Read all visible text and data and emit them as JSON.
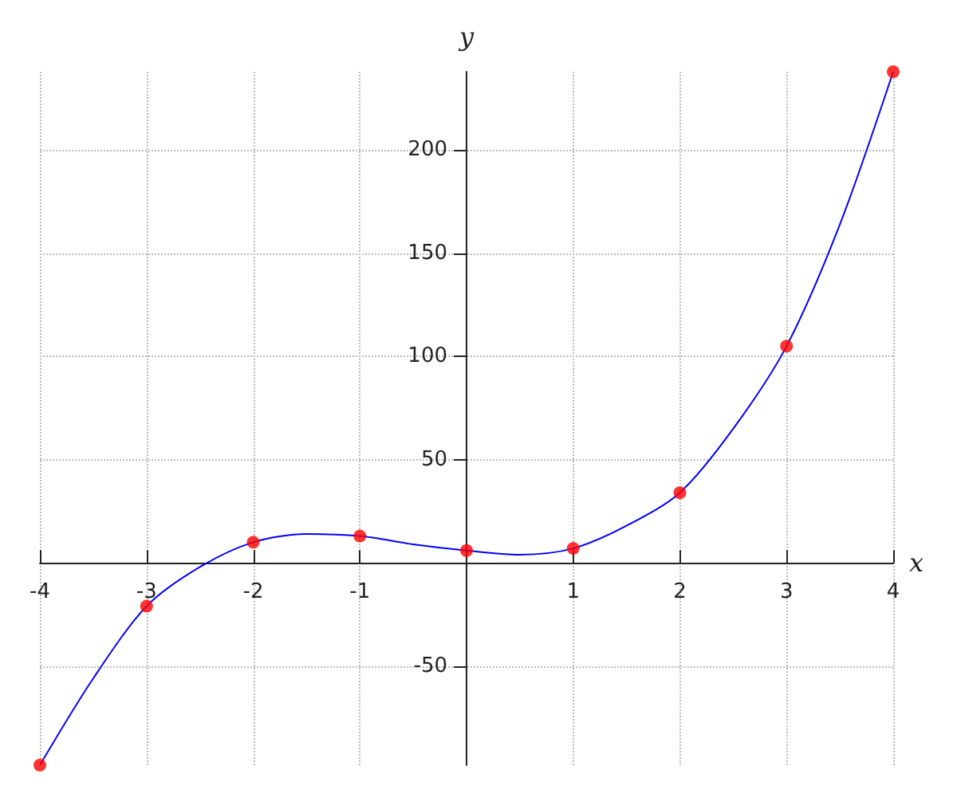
{
  "chart_data": {
    "type": "line",
    "xlabel": "x",
    "ylabel": "y",
    "xlim": [
      -4,
      4
    ],
    "ylim": [
      -98,
      238
    ],
    "xticks": [
      -4,
      -3,
      -2,
      -1,
      1,
      2,
      3,
      4
    ],
    "yticks": [
      -50,
      50,
      100,
      150,
      200
    ],
    "grid": true,
    "series": [
      {
        "color": "#0000ff",
        "marker": "none",
        "x": [
          -4,
          -3.5,
          -3,
          -2.5,
          -2,
          -1.5,
          -1,
          -0.5,
          0,
          0.5,
          1,
          1.5,
          2,
          2.5,
          3,
          3.5,
          4
        ],
        "values": [
          -98,
          -56,
          -21,
          -2,
          10,
          14,
          13,
          9,
          6,
          4,
          7,
          18,
          34,
          65,
          105,
          164,
          238
        ]
      },
      {
        "type": "scatter",
        "color": "#ff0000",
        "marker": "circle",
        "x": [
          -4,
          -3,
          -2,
          -1,
          0,
          1,
          2,
          3,
          4
        ],
        "values": [
          -98,
          -21,
          10,
          13,
          6,
          7,
          34,
          105,
          238
        ]
      }
    ]
  }
}
